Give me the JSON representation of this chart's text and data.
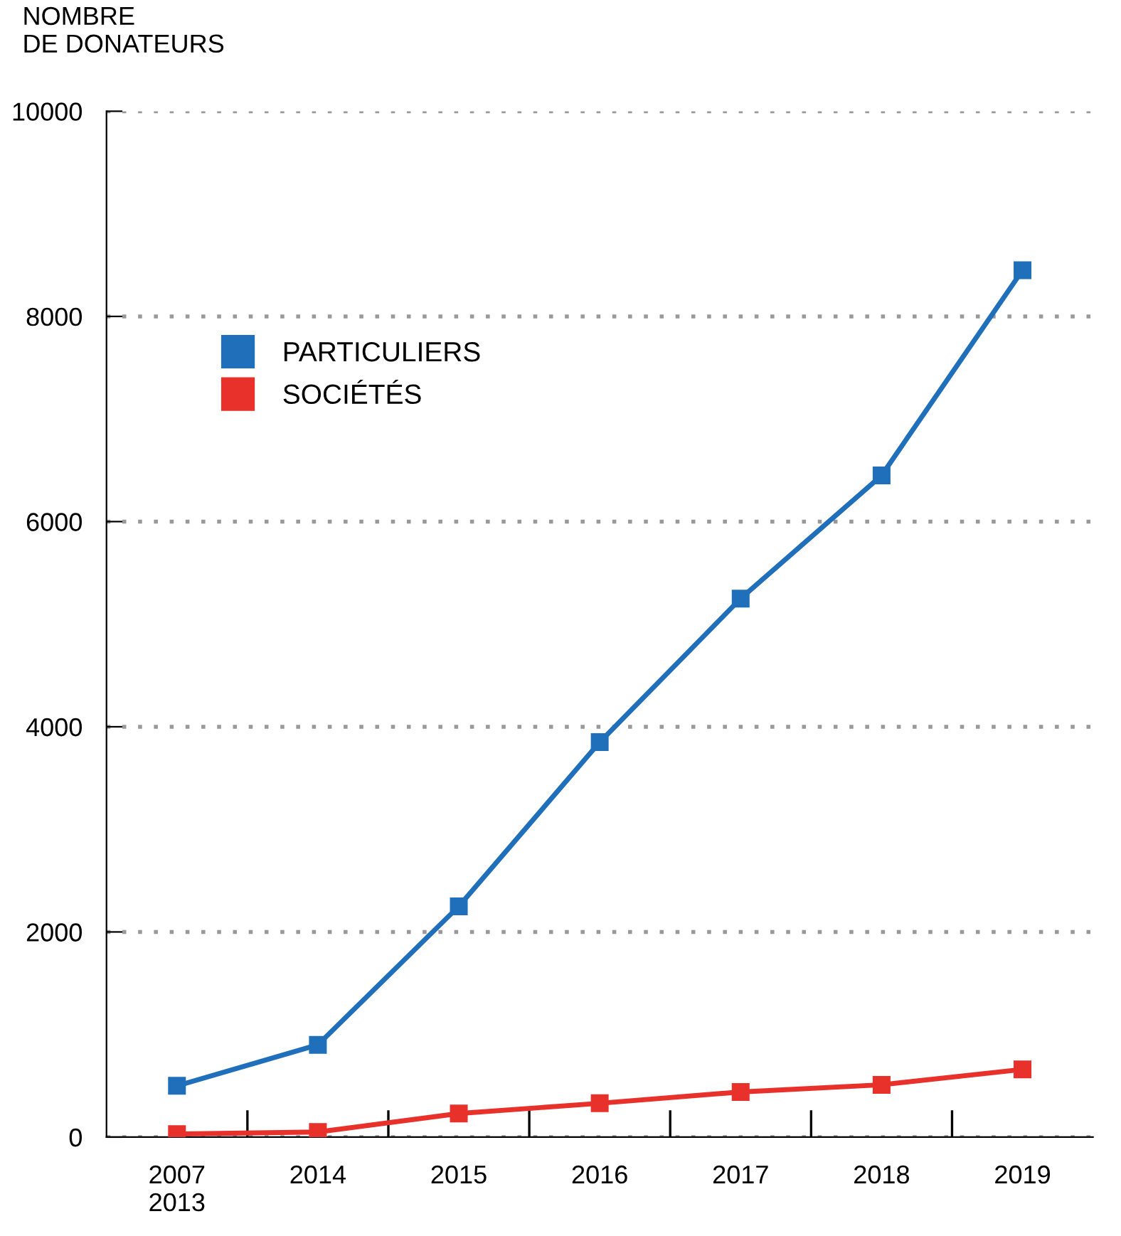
{
  "chart_data": {
    "type": "line",
    "ylabel": "NOMBRE\nDE DONATEURS",
    "categories": [
      "2007\n2013",
      "2014",
      "2015",
      "2016",
      "2017",
      "2018",
      "2019"
    ],
    "series": [
      {
        "name": "PARTICULIERS",
        "color": "#1f6fba",
        "values": [
          500,
          900,
          2250,
          3850,
          5250,
          6450,
          8450
        ]
      },
      {
        "name": "SOCIÉTÉS",
        "color": "#e8312a",
        "values": [
          30,
          50,
          230,
          330,
          440,
          510,
          660
        ]
      }
    ],
    "ylim": [
      0,
      10000
    ],
    "yticks": [
      0,
      2000,
      4000,
      6000,
      8000,
      10000
    ],
    "grid": "y",
    "legend": "upper left",
    "marker": "square",
    "line_style": "solid"
  }
}
